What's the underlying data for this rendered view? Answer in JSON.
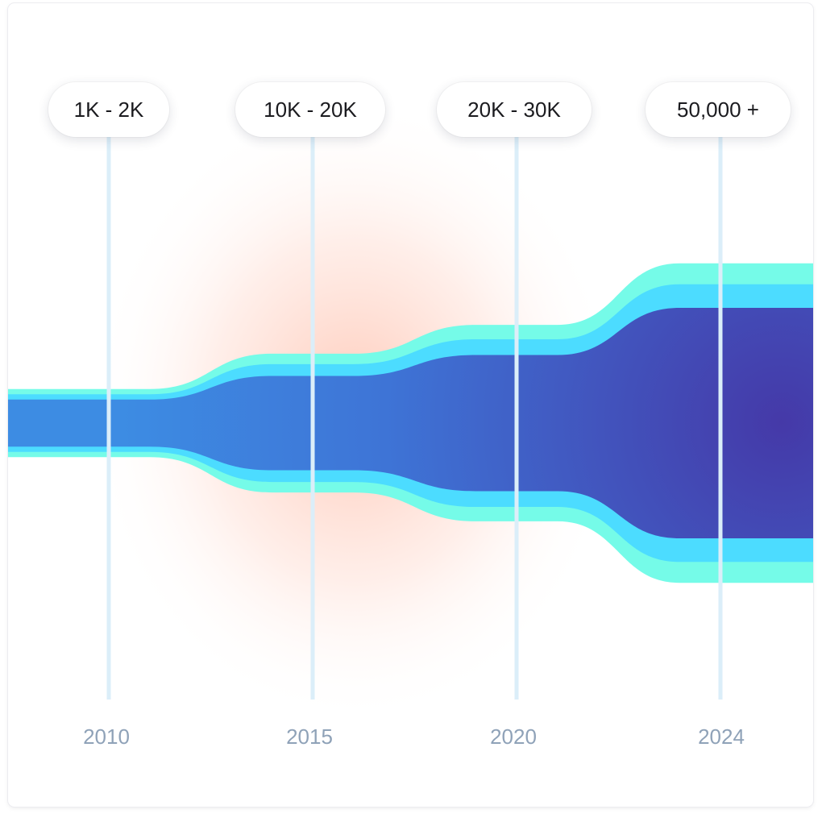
{
  "chart_data": {
    "type": "area",
    "title": "",
    "x": [
      "2010",
      "2015",
      "2020",
      "2024"
    ],
    "series": [
      {
        "values": [
          90,
          180,
          260,
          440
        ]
      },
      {
        "values": [
          20,
          45,
          60,
          90
        ]
      },
      {
        "values": [
          20,
          40,
          55,
          80
        ]
      }
    ],
    "annotations": [
      "1K - 2K",
      "10K - 20K",
      "20K - 30K",
      "50,000 +"
    ],
    "xlabel": "",
    "ylabel": "",
    "grid": false,
    "legend": "none",
    "colors": {
      "inner_start": "#3d8ce3",
      "inner_end": "#4539a8",
      "middle": "#4cdcff",
      "outer": "#75fbe8",
      "guide": "#dbeef9",
      "glow": "#ff9f80",
      "year": "#8fa2b8"
    }
  }
}
